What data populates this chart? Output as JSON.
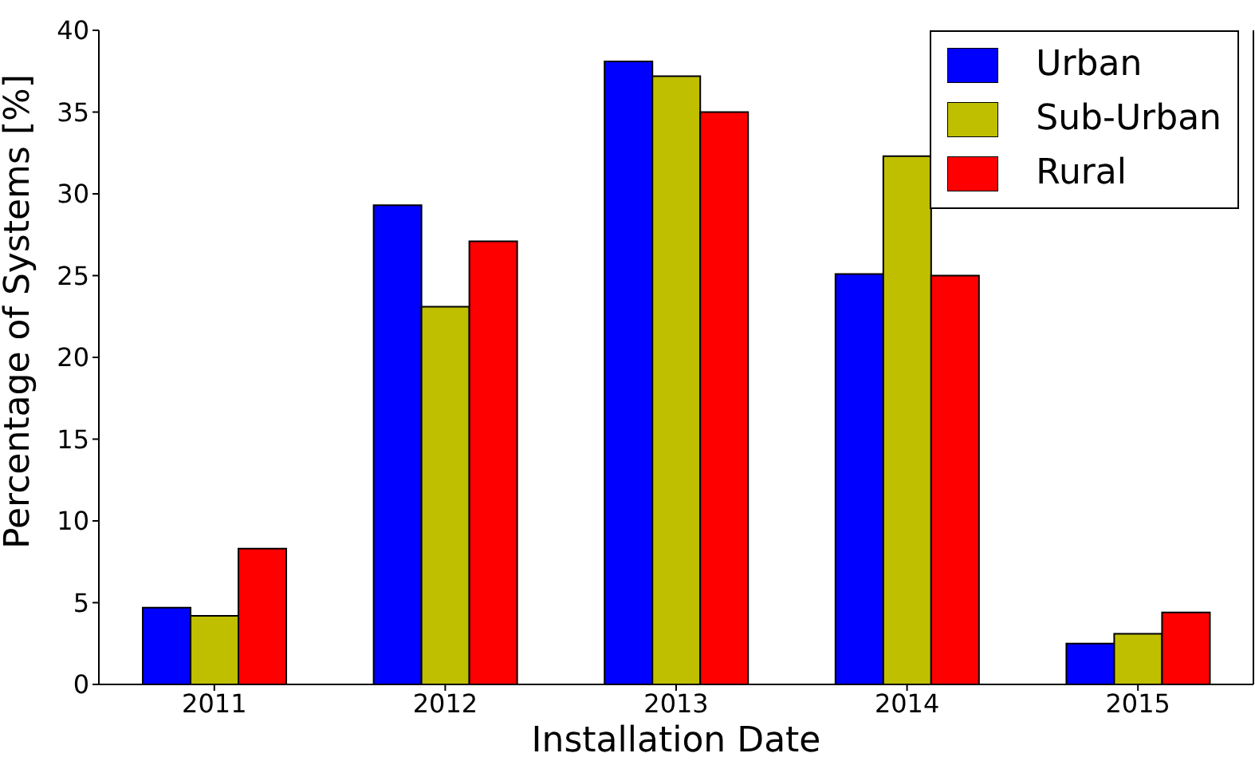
{
  "chart_data": {
    "type": "bar",
    "xlabel": "Installation Date",
    "ylabel": "Percentage of Systems [%]",
    "categories": [
      "2011",
      "2012",
      "2013",
      "2014",
      "2015"
    ],
    "series": [
      {
        "name": "Urban",
        "color": "#0000ff",
        "values": [
          4.7,
          29.3,
          38.1,
          25.1,
          2.5
        ]
      },
      {
        "name": "Sub-Urban",
        "color": "#bfbf00",
        "values": [
          4.2,
          23.1,
          37.2,
          32.3,
          3.1
        ]
      },
      {
        "name": "Rural",
        "color": "#ff0000",
        "values": [
          8.3,
          27.1,
          35.0,
          25.0,
          4.4
        ]
      }
    ],
    "ylim": [
      0,
      40
    ],
    "yticks": [
      0,
      5,
      10,
      15,
      20,
      25,
      30,
      35,
      40
    ],
    "grid": false,
    "legend": "top right"
  }
}
